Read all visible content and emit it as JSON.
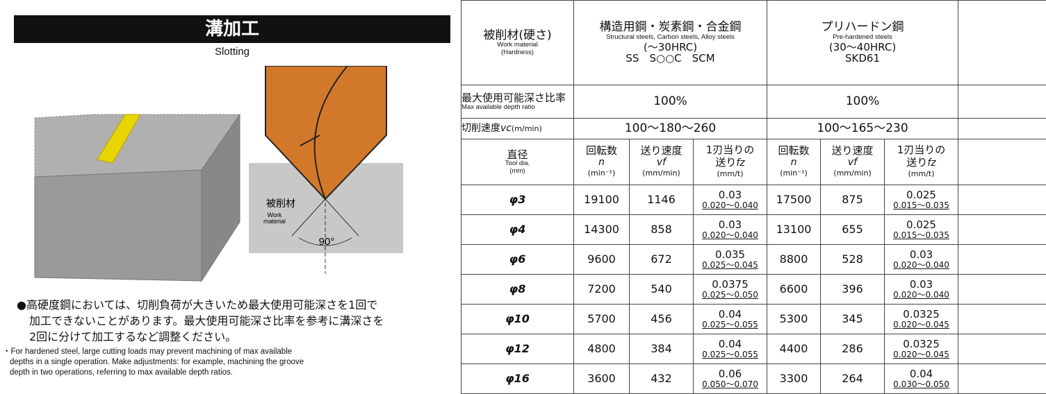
{
  "left": {
    "title": "溝加工",
    "subtitle": "Slotting",
    "figure": {
      "label_ja": "被削材",
      "label_en": [
        "Work",
        "material"
      ],
      "angle": "90°"
    },
    "note_ja": [
      "●高硬度鋼においては、切削負荷が大きいため最大使用可能深さを1回で",
      "加工できないことがあります。最大使用可能深さ比率を参考に溝深さを",
      "2回に分けて加工するなど調整ください。"
    ],
    "note_en": [
      "・For hardened steel, large cutting loads may prevent machining of max available",
      "depths in a single operation. Make adjustments: for example, machining the groove",
      "depth in two operations, referring to max available depth ratios."
    ]
  },
  "table": {
    "material_header": {
      "ja": "被削材(硬さ)",
      "en": [
        "Work material",
        "(Hardness)"
      ]
    },
    "materials": [
      {
        "ja": "構造用鋼・炭素鋼・合金鋼",
        "en": "Structural steels, Carbon steels, Alloy steels",
        "hardness": "(〜30HRC)",
        "grades": "SS　S○○C　SCM"
      },
      {
        "ja": "プリハードン鋼",
        "en": "Pre-hardened steels",
        "hardness": "(30〜40HRC)",
        "grades": "SKD61"
      }
    ],
    "depth": {
      "label_ja": "最大使用可能深さ比率",
      "label_en": "Max available depth ratio",
      "values": [
        "100%",
        "100%"
      ]
    },
    "speed": {
      "label": "切削速度",
      "symbol": "vc",
      "unit": "(m/min)",
      "values": [
        "100〜180〜260",
        "100〜165〜230"
      ]
    },
    "dia_header": {
      "ja": "直径",
      "en": [
        "Tool dia.",
        "(mm)"
      ]
    },
    "columns": [
      {
        "ja": [
          "回転数"
        ],
        "symbol": "n",
        "unit": "(min⁻¹)"
      },
      {
        "ja": [
          "送り速度"
        ],
        "symbol": "vf",
        "unit": "(mm/min)"
      },
      {
        "ja": [
          "1刃当りの",
          "送り"
        ],
        "symbol": "fz",
        "unit": "(mm/t)"
      }
    ],
    "rows": [
      {
        "dia": "φ3",
        "cells": [
          "19100",
          "1146",
          {
            "value": "0.03",
            "range": "0.020〜0.040"
          },
          "17500",
          "875",
          {
            "value": "0.025",
            "range": "0.015〜0.035"
          }
        ]
      },
      {
        "dia": "φ4",
        "cells": [
          "14300",
          "858",
          {
            "value": "0.03",
            "range": "0.020〜0.040"
          },
          "13100",
          "655",
          {
            "value": "0.025",
            "range": "0.015〜0.035"
          }
        ]
      },
      {
        "dia": "φ6",
        "cells": [
          "9600",
          "672",
          {
            "value": "0.035",
            "range": "0.025〜0.045"
          },
          "8800",
          "528",
          {
            "value": "0.03",
            "range": "0.020〜0.040"
          }
        ]
      },
      {
        "dia": "φ8",
        "cells": [
          "7200",
          "540",
          {
            "value": "0.0375",
            "range": "0.025〜0.050"
          },
          "6600",
          "396",
          {
            "value": "0.03",
            "range": "0.020〜0.040"
          }
        ]
      },
      {
        "dia": "φ10",
        "cells": [
          "5700",
          "456",
          {
            "value": "0.04",
            "range": "0.025〜0.055"
          },
          "5300",
          "345",
          {
            "value": "0.0325",
            "range": "0.020〜0.045"
          }
        ]
      },
      {
        "dia": "φ12",
        "cells": [
          "4800",
          "384",
          {
            "value": "0.04",
            "range": "0.025〜0.055"
          },
          "4400",
          "286",
          {
            "value": "0.0325",
            "range": "0.020〜0.045"
          }
        ]
      },
      {
        "dia": "φ16",
        "cells": [
          "3600",
          "432",
          {
            "value": "0.06",
            "range": "0.050〜0.070"
          },
          "3300",
          "264",
          {
            "value": "0.04",
            "range": "0.030〜0.050"
          }
        ]
      }
    ]
  }
}
